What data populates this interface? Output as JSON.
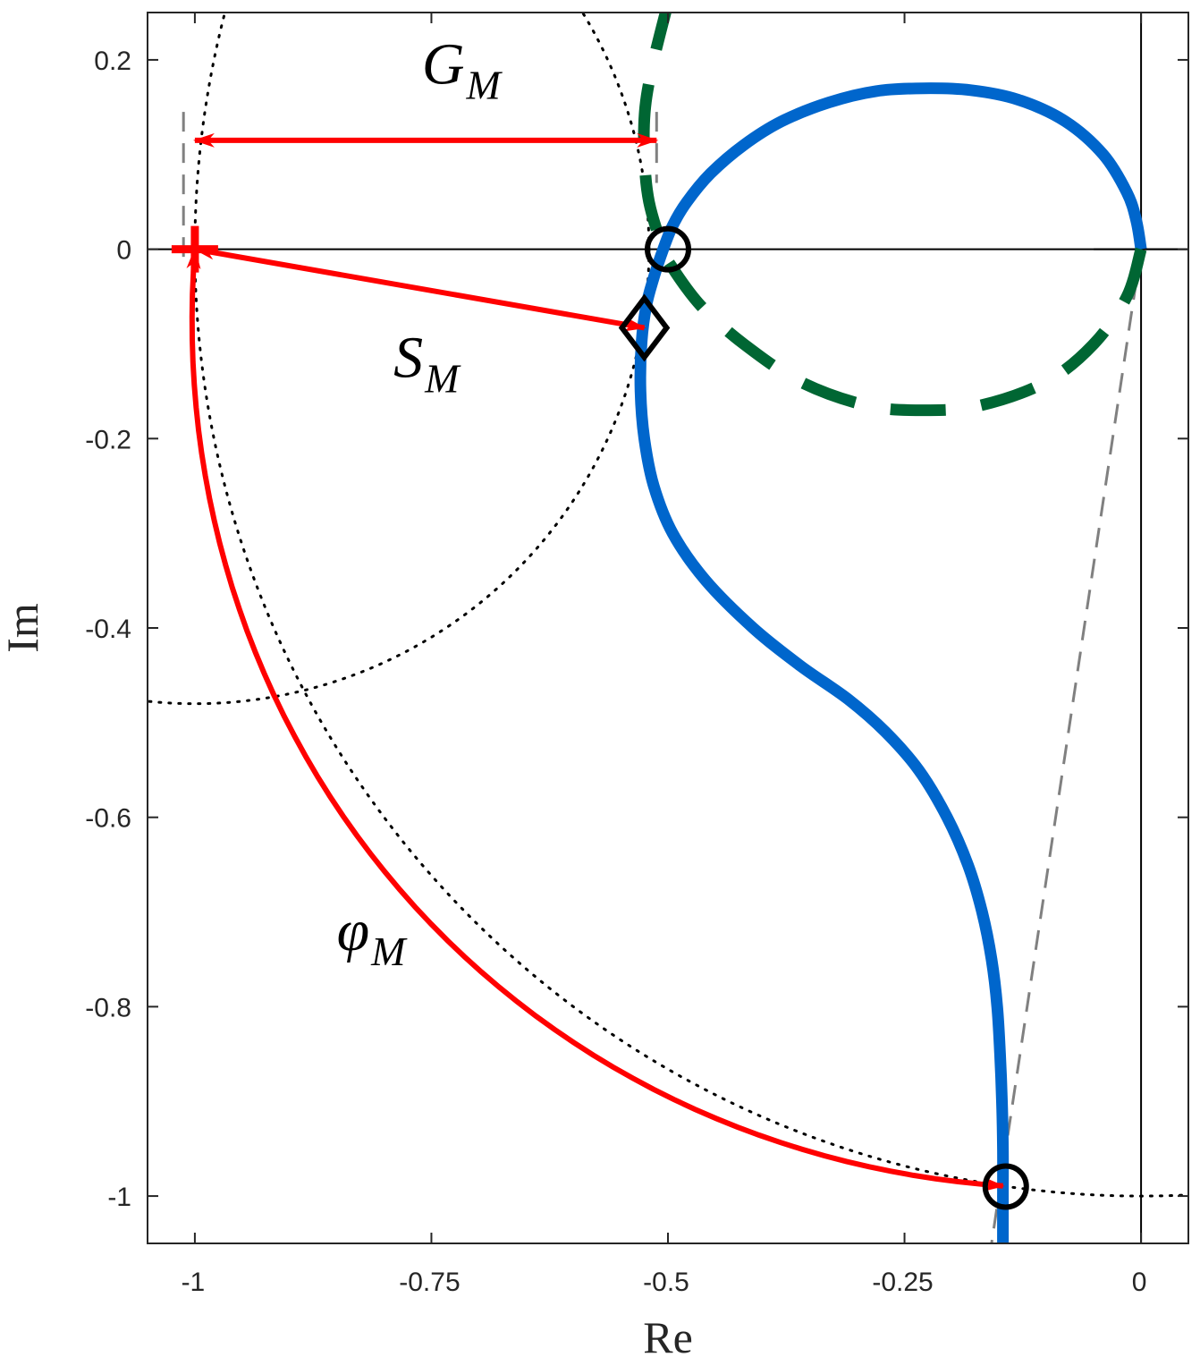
{
  "chart_data": {
    "type": "line",
    "xlabel": "Re",
    "ylabel": "Im",
    "xlim": [
      -1.05,
      0.05
    ],
    "ylim": [
      -1.05,
      0.25
    ],
    "x_ticks": [
      {
        "value": -1,
        "label": "-1"
      },
      {
        "value": -0.75,
        "label": "-0.75"
      },
      {
        "value": -0.5,
        "label": "-0.5"
      },
      {
        "value": -0.25,
        "label": "-0.25"
      },
      {
        "value": 0,
        "label": "0"
      }
    ],
    "y_ticks": [
      {
        "value": 0.2,
        "label": "0.2"
      },
      {
        "value": 0,
        "label": "0"
      },
      {
        "value": -0.2,
        "label": "-0.2"
      },
      {
        "value": -0.4,
        "label": "-0.4"
      },
      {
        "value": -0.6,
        "label": "-0.6"
      },
      {
        "value": -0.8,
        "label": "-0.8"
      },
      {
        "value": -1,
        "label": "-1"
      }
    ],
    "grid": false,
    "series": [
      {
        "color": "#0066cc",
        "style": "solid",
        "points": [
          [
            0.0,
            0.0
          ],
          [
            -0.005,
            0.03
          ],
          [
            -0.015,
            0.06
          ],
          [
            -0.04,
            0.1
          ],
          [
            -0.08,
            0.135
          ],
          [
            -0.13,
            0.158
          ],
          [
            -0.18,
            0.168
          ],
          [
            -0.23,
            0.17
          ],
          [
            -0.28,
            0.167
          ],
          [
            -0.33,
            0.155
          ],
          [
            -0.38,
            0.135
          ],
          [
            -0.42,
            0.11
          ],
          [
            -0.455,
            0.08
          ],
          [
            -0.48,
            0.05
          ],
          [
            -0.495,
            0.025
          ],
          [
            -0.505,
            0.0
          ],
          [
            -0.515,
            -0.03
          ],
          [
            -0.523,
            -0.06
          ],
          [
            -0.528,
            -0.1
          ],
          [
            -0.529,
            -0.15
          ],
          [
            -0.525,
            -0.2
          ],
          [
            -0.515,
            -0.25
          ],
          [
            -0.495,
            -0.3
          ],
          [
            -0.46,
            -0.35
          ],
          [
            -0.41,
            -0.4
          ],
          [
            -0.36,
            -0.44
          ],
          [
            -0.31,
            -0.475
          ],
          [
            -0.27,
            -0.51
          ],
          [
            -0.235,
            -0.55
          ],
          [
            -0.205,
            -0.6
          ],
          [
            -0.183,
            -0.65
          ],
          [
            -0.168,
            -0.7
          ],
          [
            -0.158,
            -0.75
          ],
          [
            -0.152,
            -0.8
          ],
          [
            -0.149,
            -0.85
          ],
          [
            -0.147,
            -0.9
          ],
          [
            -0.146,
            -0.95
          ],
          [
            -0.146,
            -1.0
          ],
          [
            -0.146,
            -1.05
          ]
        ]
      },
      {
        "color": "#006633",
        "style": "dashed",
        "points": [
          [
            0.0,
            0.0
          ],
          [
            -0.015,
            -0.05
          ],
          [
            -0.05,
            -0.1
          ],
          [
            -0.1,
            -0.14
          ],
          [
            -0.17,
            -0.165
          ],
          [
            -0.23,
            -0.17
          ],
          [
            -0.29,
            -0.165
          ],
          [
            -0.36,
            -0.14
          ],
          [
            -0.42,
            -0.1
          ],
          [
            -0.465,
            -0.06
          ],
          [
            -0.495,
            -0.02
          ],
          [
            -0.505,
            0.0
          ],
          [
            -0.52,
            0.05
          ],
          [
            -0.525,
            0.1
          ],
          [
            -0.524,
            0.15
          ],
          [
            -0.515,
            0.2
          ],
          [
            -0.5,
            0.26
          ]
        ]
      }
    ],
    "reference_lines": [
      {
        "kind": "unit-circle",
        "style": "dotted",
        "color": "#000000"
      },
      {
        "kind": "circle",
        "center": [
          -1,
          0
        ],
        "radius": 0.48,
        "style": "dotted",
        "color": "#000000"
      },
      {
        "kind": "line",
        "points": [
          [
            0.0,
            0.0
          ],
          [
            -0.158,
            -1.05
          ]
        ],
        "style": "dashed",
        "color": "#808080"
      },
      {
        "kind": "line",
        "points": [
          [
            -1.012,
            0.145
          ],
          [
            -1.012,
            -0.01
          ]
        ],
        "style": "dashed",
        "color": "#808080"
      },
      {
        "kind": "line",
        "points": [
          [
            -0.512,
            0.145
          ],
          [
            -0.512,
            0.07
          ]
        ],
        "style": "dashed",
        "color": "#808080"
      },
      {
        "kind": "line",
        "points": [
          [
            -0.05,
            0
          ],
          [
            0.05,
            0
          ]
        ],
        "style": "solid",
        "color": "#000000"
      }
    ],
    "markers": [
      {
        "shape": "circle",
        "x": -0.5,
        "y": 0.0,
        "color": "#000000"
      },
      {
        "shape": "circle",
        "x": -0.143,
        "y": -0.99,
        "color": "#000000"
      },
      {
        "shape": "diamond",
        "x": -0.525,
        "y": -0.083,
        "color": "#000000"
      },
      {
        "shape": "plus",
        "x": -1.0,
        "y": 0.0,
        "color": "#ff0000"
      }
    ],
    "arrows": [
      {
        "name": "gain-margin",
        "from": [
          -1.0,
          0.115
        ],
        "to": [
          -0.512,
          0.115
        ],
        "double": true,
        "color": "#ff0000"
      },
      {
        "name": "stability-margin",
        "from": [
          -1.0,
          0.0
        ],
        "to": [
          -0.525,
          -0.083
        ],
        "double": true,
        "color": "#ff0000"
      },
      {
        "name": "phase-margin",
        "from": [
          -0.146,
          -0.99
        ],
        "to": [
          -1.0,
          0.0
        ],
        "arc": "unit-circle",
        "double": true,
        "color": "#ff0000"
      }
    ],
    "annotations": [
      {
        "name": "gain-margin-label",
        "symbol": "G",
        "subscript": "M",
        "x": -0.76,
        "y": 0.175
      },
      {
        "name": "stability-margin-label",
        "symbol": "S",
        "subscript": "M",
        "x": -0.79,
        "y": -0.135
      },
      {
        "name": "phase-margin-label",
        "symbol": "φ",
        "subscript": "M",
        "x": -0.85,
        "y": -0.74
      }
    ]
  }
}
